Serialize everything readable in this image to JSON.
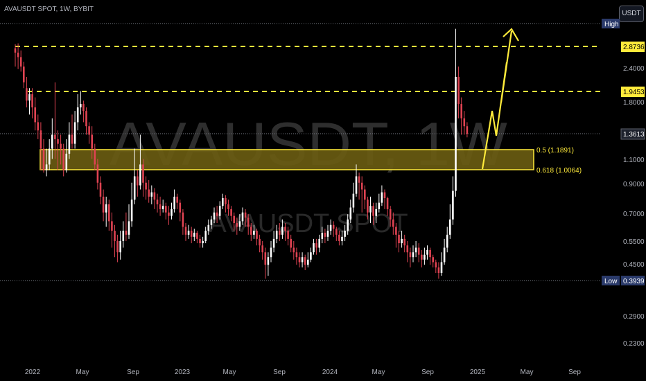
{
  "header": {
    "symbol_line": "AVAUSDT SPOT, 1W, BYBIT"
  },
  "currency_button": "USDT",
  "colors": {
    "background": "#000000",
    "up": "#ffffff",
    "down": "#e04352",
    "accent": "#ffeb3b",
    "zone_fill": "#6b5d12",
    "high_low_tag": "#2a3a6a"
  },
  "chart_data": {
    "type": "candlestick",
    "title": "AVAUSDT SPOT, 1W, BYBIT",
    "watermark": {
      "main": "AVAUSDT, 1W",
      "sub": "AVAUSDT SPOT"
    },
    "y_scale": "log",
    "ylim": [
      0.2,
      3.6
    ],
    "x_ticks": [
      "2022",
      "May",
      "Sep",
      "2023",
      "May",
      "Sep",
      "2024",
      "May",
      "Sep",
      "2025",
      "May",
      "Sep"
    ],
    "y_ticks": [
      "2.4000",
      "1.8000",
      "1.1000",
      "0.9000",
      "0.7000",
      "0.5500",
      "0.4500",
      "0.2900",
      "0.2300"
    ],
    "current_price": {
      "label": "1.3613",
      "value": 1.3613
    },
    "high": {
      "tag": "High",
      "value": 3.3
    },
    "low": {
      "tag": "Low",
      "label": "0.3939",
      "value": 0.3939
    },
    "resistance_levels": [
      {
        "label": "2.8736",
        "value": 2.8736
      },
      {
        "label": "1.9453",
        "value": 1.9453
      }
    ],
    "fib_zone": [
      {
        "label": "0.5 (1.1891)",
        "value": 1.1891
      },
      {
        "label": "0.618 (1.0064)",
        "value": 1.0064
      }
    ],
    "candles": [
      [
        2.7,
        2.8,
        2.9,
        2.4
      ],
      [
        2.6,
        2.7,
        2.92,
        2.35
      ],
      [
        2.4,
        2.6,
        2.75,
        2.3
      ],
      [
        2.1,
        2.4,
        2.5,
        2.0
      ],
      [
        1.8,
        2.0,
        2.2,
        1.7
      ],
      [
        1.9,
        1.8,
        2.0,
        1.6
      ],
      [
        1.7,
        1.9,
        2.0,
        1.55
      ],
      [
        1.5,
        1.7,
        1.85,
        1.4
      ],
      [
        1.4,
        1.5,
        1.6,
        1.3
      ],
      [
        1.2,
        1.4,
        1.5,
        1.0
      ],
      [
        1.0,
        1.2,
        1.3,
        0.98
      ],
      [
        1.05,
        1.0,
        1.2,
        0.95
      ],
      [
        1.2,
        1.05,
        1.3,
        1.0
      ],
      [
        1.35,
        1.2,
        1.55,
        1.1
      ],
      [
        1.3,
        1.35,
        2.1,
        1.1
      ],
      [
        1.25,
        1.3,
        1.4,
        1.0
      ],
      [
        1.2,
        1.25,
        1.35,
        1.05
      ],
      [
        1.0,
        1.2,
        1.25,
        0.95
      ],
      [
        1.15,
        1.0,
        1.3,
        0.98
      ],
      [
        1.35,
        1.15,
        1.5,
        1.1
      ],
      [
        1.25,
        1.35,
        1.6,
        1.2
      ],
      [
        1.5,
        1.25,
        1.65,
        1.2
      ],
      [
        1.7,
        1.5,
        1.9,
        1.4
      ],
      [
        1.75,
        1.7,
        1.95,
        1.6
      ],
      [
        1.65,
        1.75,
        1.8,
        1.5
      ],
      [
        1.45,
        1.65,
        1.7,
        1.35
      ],
      [
        1.35,
        1.45,
        1.5,
        1.25
      ],
      [
        1.2,
        1.35,
        1.45,
        1.1
      ],
      [
        1.05,
        1.2,
        1.25,
        1.0
      ],
      [
        0.9,
        1.05,
        1.1,
        0.85
      ],
      [
        0.8,
        0.9,
        0.95,
        0.75
      ],
      [
        0.7,
        0.8,
        0.85,
        0.65
      ],
      [
        0.75,
        0.7,
        0.8,
        0.62
      ],
      [
        0.65,
        0.75,
        0.78,
        0.6
      ],
      [
        0.6,
        0.65,
        0.7,
        0.52
      ],
      [
        0.55,
        0.6,
        0.63,
        0.48
      ],
      [
        0.5,
        0.55,
        0.58,
        0.46
      ],
      [
        0.55,
        0.5,
        0.6,
        0.47
      ],
      [
        0.6,
        0.55,
        0.65,
        0.52
      ],
      [
        0.58,
        0.6,
        0.7,
        0.55
      ],
      [
        0.65,
        0.58,
        0.75,
        0.56
      ],
      [
        0.78,
        0.65,
        0.9,
        0.62
      ],
      [
        0.95,
        0.78,
        1.2,
        0.75
      ],
      [
        0.88,
        0.95,
        1.0,
        0.8
      ],
      [
        1.05,
        0.88,
        1.35,
        0.85
      ],
      [
        0.9,
        1.05,
        1.1,
        0.8
      ],
      [
        0.85,
        0.9,
        0.95,
        0.78
      ],
      [
        0.8,
        0.85,
        0.92,
        0.76
      ],
      [
        0.83,
        0.8,
        0.88,
        0.75
      ],
      [
        0.78,
        0.83,
        0.86,
        0.72
      ],
      [
        0.75,
        0.78,
        0.82,
        0.7
      ],
      [
        0.72,
        0.75,
        0.8,
        0.68
      ],
      [
        0.74,
        0.72,
        0.78,
        0.7
      ],
      [
        0.7,
        0.74,
        0.76,
        0.66
      ],
      [
        0.68,
        0.7,
        0.74,
        0.63
      ],
      [
        0.72,
        0.68,
        0.76,
        0.66
      ],
      [
        0.8,
        0.72,
        0.85,
        0.7
      ],
      [
        0.76,
        0.8,
        0.82,
        0.72
      ],
      [
        0.7,
        0.76,
        0.78,
        0.65
      ],
      [
        0.62,
        0.7,
        0.72,
        0.58
      ],
      [
        0.58,
        0.62,
        0.64,
        0.55
      ],
      [
        0.6,
        0.58,
        0.63,
        0.56
      ],
      [
        0.57,
        0.6,
        0.62,
        0.54
      ],
      [
        0.59,
        0.57,
        0.61,
        0.55
      ],
      [
        0.56,
        0.59,
        0.6,
        0.54
      ],
      [
        0.54,
        0.56,
        0.58,
        0.52
      ],
      [
        0.55,
        0.54,
        0.57,
        0.52
      ],
      [
        0.6,
        0.55,
        0.62,
        0.54
      ],
      [
        0.63,
        0.6,
        0.66,
        0.58
      ],
      [
        0.66,
        0.63,
        0.68,
        0.61
      ],
      [
        0.7,
        0.66,
        0.73,
        0.64
      ],
      [
        0.68,
        0.7,
        0.74,
        0.64
      ],
      [
        0.74,
        0.68,
        0.77,
        0.66
      ],
      [
        0.79,
        0.74,
        0.82,
        0.72
      ],
      [
        0.75,
        0.79,
        0.81,
        0.7
      ],
      [
        0.72,
        0.75,
        0.78,
        0.68
      ],
      [
        0.68,
        0.72,
        0.74,
        0.65
      ],
      [
        0.64,
        0.68,
        0.7,
        0.6
      ],
      [
        0.62,
        0.64,
        0.67,
        0.58
      ],
      [
        0.65,
        0.62,
        0.69,
        0.6
      ],
      [
        0.7,
        0.65,
        0.73,
        0.63
      ],
      [
        0.67,
        0.7,
        0.72,
        0.62
      ],
      [
        0.62,
        0.67,
        0.69,
        0.58
      ],
      [
        0.58,
        0.62,
        0.64,
        0.55
      ],
      [
        0.6,
        0.58,
        0.63,
        0.56
      ],
      [
        0.56,
        0.6,
        0.61,
        0.53
      ],
      [
        0.53,
        0.56,
        0.58,
        0.5
      ],
      [
        0.5,
        0.53,
        0.55,
        0.47
      ],
      [
        0.45,
        0.5,
        0.52,
        0.4
      ],
      [
        0.48,
        0.45,
        0.5,
        0.41
      ],
      [
        0.52,
        0.48,
        0.55,
        0.46
      ],
      [
        0.56,
        0.52,
        0.6,
        0.5
      ],
      [
        0.6,
        0.56,
        0.63,
        0.54
      ],
      [
        0.58,
        0.6,
        0.64,
        0.55
      ],
      [
        0.62,
        0.58,
        0.66,
        0.56
      ],
      [
        0.6,
        0.62,
        0.64,
        0.55
      ],
      [
        0.56,
        0.6,
        0.62,
        0.53
      ],
      [
        0.52,
        0.56,
        0.58,
        0.5
      ],
      [
        0.5,
        0.52,
        0.55,
        0.47
      ],
      [
        0.48,
        0.5,
        0.52,
        0.45
      ],
      [
        0.46,
        0.48,
        0.5,
        0.44
      ],
      [
        0.48,
        0.46,
        0.5,
        0.44
      ],
      [
        0.45,
        0.48,
        0.49,
        0.43
      ],
      [
        0.47,
        0.45,
        0.5,
        0.44
      ],
      [
        0.5,
        0.47,
        0.52,
        0.46
      ],
      [
        0.54,
        0.5,
        0.56,
        0.49
      ],
      [
        0.52,
        0.54,
        0.56,
        0.49
      ],
      [
        0.56,
        0.52,
        0.58,
        0.5
      ],
      [
        0.59,
        0.56,
        0.62,
        0.54
      ],
      [
        0.57,
        0.59,
        0.61,
        0.54
      ],
      [
        0.6,
        0.57,
        0.63,
        0.55
      ],
      [
        0.63,
        0.6,
        0.66,
        0.58
      ],
      [
        0.61,
        0.63,
        0.65,
        0.57
      ],
      [
        0.58,
        0.61,
        0.62,
        0.55
      ],
      [
        0.55,
        0.58,
        0.6,
        0.53
      ],
      [
        0.57,
        0.55,
        0.6,
        0.53
      ],
      [
        0.6,
        0.57,
        0.63,
        0.55
      ],
      [
        0.66,
        0.6,
        0.69,
        0.58
      ],
      [
        0.73,
        0.66,
        0.78,
        0.64
      ],
      [
        0.82,
        0.73,
        0.9,
        0.7
      ],
      [
        0.95,
        0.82,
        1.05,
        0.8
      ],
      [
        0.9,
        0.95,
        0.98,
        0.78
      ],
      [
        0.85,
        0.9,
        0.95,
        0.7
      ],
      [
        0.78,
        0.85,
        0.88,
        0.72
      ],
      [
        0.7,
        0.78,
        0.8,
        0.66
      ],
      [
        0.74,
        0.7,
        0.8,
        0.64
      ],
      [
        0.68,
        0.74,
        0.76,
        0.63
      ],
      [
        0.72,
        0.68,
        0.76,
        0.64
      ],
      [
        0.76,
        0.72,
        0.82,
        0.7
      ],
      [
        0.83,
        0.76,
        0.88,
        0.74
      ],
      [
        0.79,
        0.83,
        0.85,
        0.72
      ],
      [
        0.72,
        0.79,
        0.8,
        0.68
      ],
      [
        0.66,
        0.72,
        0.74,
        0.62
      ],
      [
        0.62,
        0.66,
        0.7,
        0.58
      ],
      [
        0.58,
        0.62,
        0.64,
        0.52
      ],
      [
        0.54,
        0.58,
        0.6,
        0.5
      ],
      [
        0.56,
        0.54,
        0.6,
        0.52
      ],
      [
        0.53,
        0.56,
        0.58,
        0.5
      ],
      [
        0.5,
        0.53,
        0.55,
        0.46
      ],
      [
        0.48,
        0.5,
        0.52,
        0.44
      ],
      [
        0.5,
        0.48,
        0.53,
        0.46
      ],
      [
        0.52,
        0.5,
        0.55,
        0.48
      ],
      [
        0.49,
        0.52,
        0.54,
        0.46
      ],
      [
        0.47,
        0.49,
        0.51,
        0.44
      ],
      [
        0.49,
        0.47,
        0.52,
        0.45
      ],
      [
        0.51,
        0.49,
        0.53,
        0.47
      ],
      [
        0.48,
        0.51,
        0.52,
        0.45
      ],
      [
        0.46,
        0.48,
        0.49,
        0.44
      ],
      [
        0.44,
        0.46,
        0.47,
        0.42
      ],
      [
        0.42,
        0.44,
        0.46,
        0.4
      ],
      [
        0.46,
        0.42,
        0.5,
        0.41
      ],
      [
        0.52,
        0.46,
        0.56,
        0.45
      ],
      [
        0.58,
        0.52,
        0.62,
        0.5
      ],
      [
        0.66,
        0.58,
        0.75,
        0.56
      ],
      [
        0.84,
        0.66,
        0.95,
        0.63
      ],
      [
        2.2,
        0.84,
        3.3,
        0.8
      ],
      [
        1.75,
        2.2,
        2.4,
        1.55
      ],
      [
        1.55,
        1.75,
        1.85,
        1.35
      ],
      [
        1.45,
        1.55,
        1.65,
        1.35
      ],
      [
        1.36,
        1.45,
        1.5,
        1.32
      ]
    ]
  }
}
